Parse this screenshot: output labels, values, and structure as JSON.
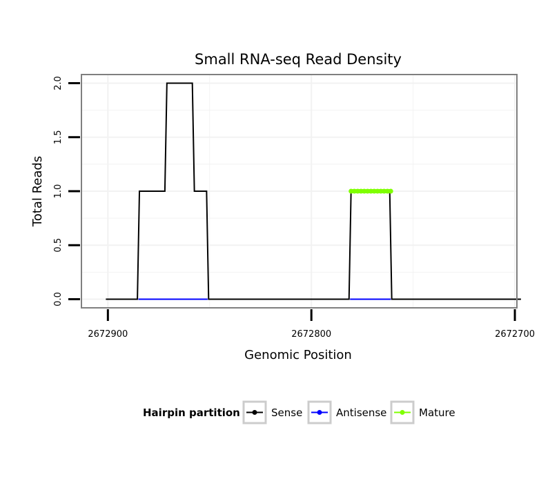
{
  "colors": {
    "sense": "#000000",
    "antisense": "#0000ff",
    "mature": "#7fff00",
    "panel_border": "#7f7f7f",
    "grid": "#f2f2f2",
    "legend_box": "#cccccc"
  },
  "chart_data": {
    "type": "line",
    "title": "Small RNA-seq Read Density",
    "xlabel": "Genomic Position",
    "ylabel": "Total Reads",
    "x_reversed": true,
    "xlim": [
      2672913,
      2672699
    ],
    "ylim": [
      -0.08,
      2.08
    ],
    "x_ticks": [
      2672900,
      2672800,
      2672700
    ],
    "x_tick_labels": [
      "2672900",
      "2672800",
      "2672700"
    ],
    "y_ticks": [
      0,
      0.5,
      1,
      1.5,
      2
    ],
    "y_tick_labels": [
      "0.0",
      "0.5",
      "1.0",
      "1.5",
      "2.0"
    ],
    "grid": true,
    "series": [
      {
        "name": "Sense",
        "key": "sense",
        "x": [
          2672901,
          2672885.5,
          2672884.5,
          2672872,
          2672871,
          2672858.5,
          2672857.5,
          2672851.5,
          2672850.5,
          2672781.5,
          2672780.5,
          2672761.5,
          2672760.5,
          2672697
        ],
        "y": [
          0,
          0,
          1,
          1,
          2,
          2,
          1,
          1,
          0,
          0,
          1,
          1,
          0,
          0
        ]
      },
      {
        "name": "Antisense",
        "key": "antisense",
        "x": [
          2672885,
          2672851,
          2672781,
          2672761
        ],
        "y": [
          0,
          0,
          0,
          0
        ],
        "segments": [
          [
            0,
            1
          ],
          [
            2,
            3
          ]
        ]
      },
      {
        "name": "Mature",
        "key": "mature",
        "x": [
          2672780.5,
          2672761
        ],
        "y": [
          1,
          1
        ]
      }
    ],
    "legend": {
      "title": "Hairpin partition",
      "position": "bottom",
      "entries": [
        {
          "label": "Sense",
          "key": "sense"
        },
        {
          "label": "Antisense",
          "key": "antisense"
        },
        {
          "label": "Mature",
          "key": "mature"
        }
      ]
    }
  }
}
